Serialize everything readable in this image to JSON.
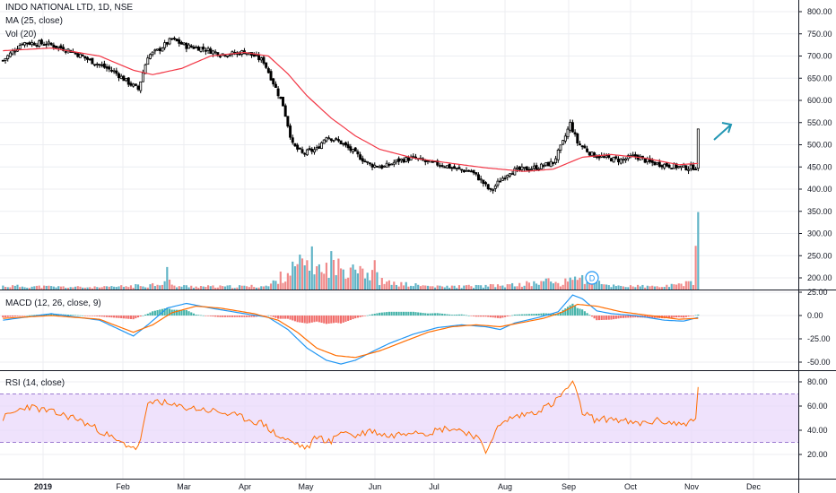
{
  "header": {
    "title": "INDO NATIONAL LTD, 1D, NSE",
    "ma_label": "MA (25, close)",
    "vol_label": "Vol (20)",
    "macd_label": "MACD (12, 26, close, 9)",
    "rsi_label": "RSI (14, close)"
  },
  "colors": {
    "up": "#000000",
    "down": "#000000",
    "ma": "#f23645",
    "vol_up": "#5fb3c6",
    "vol_down": "#f08a8a",
    "macd_line": "#2196f3",
    "signal_line": "#ff6d00",
    "hist_pos": "#26a69a",
    "hist_neg": "#ef5350",
    "rsi_line": "#ff6d00",
    "rsi_band": "#e9d8fb",
    "arrow": "#2196b3"
  },
  "marker": {
    "label": "D"
  },
  "chart_data": [
    {
      "type": "candlestick",
      "title": "INDO NATIONAL LTD, 1D, NSE",
      "y_ticks": [
        "800.00",
        "750.00",
        "700.00",
        "650.00",
        "600.00",
        "550.00",
        "500.00",
        "450.00",
        "400.00",
        "350.00",
        "300.00",
        "250.00",
        "200.00"
      ],
      "x_labels": [
        "2019",
        "Feb",
        "Mar",
        "Apr",
        "May",
        "Jun",
        "Jul",
        "Aug",
        "Sep",
        "Oct",
        "Nov",
        "Dec"
      ],
      "price_keypoints": [
        [
          0,
          690
        ],
        [
          8,
          730
        ],
        [
          18,
          728
        ],
        [
          28,
          712
        ],
        [
          36,
          690
        ],
        [
          46,
          665
        ],
        [
          52,
          640
        ],
        [
          56,
          625
        ],
        [
          60,
          700
        ],
        [
          64,
          712
        ],
        [
          70,
          738
        ],
        [
          76,
          722
        ],
        [
          82,
          718
        ],
        [
          90,
          705
        ],
        [
          96,
          705
        ],
        [
          100,
          710
        ],
        [
          104,
          700
        ],
        [
          108,
          688
        ],
        [
          112,
          640
        ],
        [
          116,
          590
        ],
        [
          120,
          500
        ],
        [
          124,
          480
        ],
        [
          130,
          490
        ],
        [
          134,
          520
        ],
        [
          140,
          505
        ],
        [
          146,
          480
        ],
        [
          152,
          455
        ],
        [
          158,
          450
        ],
        [
          164,
          465
        ],
        [
          170,
          470
        ],
        [
          176,
          460
        ],
        [
          182,
          455
        ],
        [
          188,
          445
        ],
        [
          194,
          440
        ],
        [
          198,
          420
        ],
        [
          202,
          395
        ],
        [
          206,
          420
        ],
        [
          210,
          440
        ],
        [
          216,
          445
        ],
        [
          222,
          450
        ],
        [
          228,
          460
        ],
        [
          232,
          505
        ],
        [
          235,
          548
        ],
        [
          238,
          505
        ],
        [
          244,
          478
        ],
        [
          250,
          470
        ],
        [
          256,
          465
        ],
        [
          262,
          475
        ],
        [
          268,
          460
        ],
        [
          274,
          455
        ],
        [
          280,
          450
        ],
        [
          284,
          448
        ],
        [
          287,
          450
        ],
        [
          288,
          530
        ]
      ],
      "ma_keypoints": [
        [
          0,
          712
        ],
        [
          20,
          718
        ],
        [
          40,
          700
        ],
        [
          54,
          668
        ],
        [
          62,
          658
        ],
        [
          74,
          672
        ],
        [
          86,
          700
        ],
        [
          100,
          708
        ],
        [
          110,
          700
        ],
        [
          118,
          660
        ],
        [
          126,
          610
        ],
        [
          136,
          560
        ],
        [
          146,
          520
        ],
        [
          156,
          490
        ],
        [
          170,
          470
        ],
        [
          186,
          458
        ],
        [
          200,
          448
        ],
        [
          216,
          440
        ],
        [
          228,
          445
        ],
        [
          240,
          472
        ],
        [
          252,
          478
        ],
        [
          266,
          470
        ],
        [
          280,
          455
        ],
        [
          288,
          458
        ]
      ],
      "volume_keypoints": [
        [
          0,
          10
        ],
        [
          20,
          8
        ],
        [
          40,
          6
        ],
        [
          60,
          12
        ],
        [
          67,
          22
        ],
        [
          68,
          55
        ],
        [
          70,
          10
        ],
        [
          90,
          8
        ],
        [
          110,
          10
        ],
        [
          118,
          50
        ],
        [
          126,
          80
        ],
        [
          130,
          85
        ],
        [
          132,
          40
        ],
        [
          136,
          82
        ],
        [
          140,
          55
        ],
        [
          146,
          85
        ],
        [
          152,
          40
        ],
        [
          154,
          60
        ],
        [
          156,
          25
        ],
        [
          160,
          18
        ],
        [
          180,
          8
        ],
        [
          200,
          10
        ],
        [
          210,
          12
        ],
        [
          220,
          18
        ],
        [
          226,
          25
        ],
        [
          232,
          15
        ],
        [
          236,
          40
        ],
        [
          240,
          30
        ],
        [
          250,
          12
        ],
        [
          270,
          8
        ],
        [
          280,
          12
        ],
        [
          284,
          25
        ],
        [
          286,
          18
        ],
        [
          288,
          180
        ]
      ]
    },
    {
      "type": "line",
      "title": "MACD (12, 26, close, 9)",
      "y_ticks": [
        "25.00",
        "0.00",
        "-25.00",
        "-50.00"
      ],
      "macd_keypoints": [
        [
          0,
          -5
        ],
        [
          20,
          2
        ],
        [
          40,
          -5
        ],
        [
          54,
          -22
        ],
        [
          60,
          -10
        ],
        [
          68,
          8
        ],
        [
          76,
          13
        ],
        [
          86,
          8
        ],
        [
          100,
          2
        ],
        [
          110,
          -2
        ],
        [
          118,
          -15
        ],
        [
          126,
          -35
        ],
        [
          134,
          -48
        ],
        [
          140,
          -52
        ],
        [
          146,
          -48
        ],
        [
          152,
          -40
        ],
        [
          160,
          -30
        ],
        [
          170,
          -20
        ],
        [
          180,
          -13
        ],
        [
          190,
          -10
        ],
        [
          200,
          -12
        ],
        [
          206,
          -15
        ],
        [
          212,
          -8
        ],
        [
          222,
          -2
        ],
        [
          230,
          4
        ],
        [
          236,
          22
        ],
        [
          240,
          18
        ],
        [
          246,
          5
        ],
        [
          252,
          2
        ],
        [
          262,
          0
        ],
        [
          274,
          -5
        ],
        [
          282,
          -6
        ],
        [
          288,
          -2
        ]
      ],
      "signal_keypoints": [
        [
          0,
          -3
        ],
        [
          20,
          0
        ],
        [
          40,
          -4
        ],
        [
          54,
          -18
        ],
        [
          62,
          -10
        ],
        [
          70,
          3
        ],
        [
          80,
          10
        ],
        [
          90,
          8
        ],
        [
          104,
          2
        ],
        [
          114,
          -5
        ],
        [
          122,
          -18
        ],
        [
          130,
          -35
        ],
        [
          138,
          -43
        ],
        [
          146,
          -45
        ],
        [
          156,
          -38
        ],
        [
          166,
          -28
        ],
        [
          176,
          -18
        ],
        [
          186,
          -12
        ],
        [
          196,
          -10
        ],
        [
          206,
          -12
        ],
        [
          214,
          -8
        ],
        [
          224,
          -3
        ],
        [
          232,
          4
        ],
        [
          238,
          12
        ],
        [
          246,
          10
        ],
        [
          256,
          4
        ],
        [
          268,
          0
        ],
        [
          280,
          -4
        ],
        [
          288,
          -3
        ]
      ]
    },
    {
      "type": "line",
      "title": "RSI (14, close)",
      "y_ticks": [
        "80.00",
        "60.00",
        "40.00",
        "20.00"
      ],
      "band": [
        30,
        70
      ],
      "rsi_keypoints": [
        [
          0,
          50
        ],
        [
          10,
          60
        ],
        [
          20,
          55
        ],
        [
          30,
          50
        ],
        [
          40,
          40
        ],
        [
          48,
          30
        ],
        [
          56,
          25
        ],
        [
          60,
          60
        ],
        [
          64,
          65
        ],
        [
          70,
          60
        ],
        [
          80,
          58
        ],
        [
          90,
          55
        ],
        [
          100,
          50
        ],
        [
          108,
          45
        ],
        [
          114,
          35
        ],
        [
          120,
          30
        ],
        [
          126,
          25
        ],
        [
          130,
          35
        ],
        [
          136,
          30
        ],
        [
          140,
          40
        ],
        [
          146,
          35
        ],
        [
          152,
          40
        ],
        [
          160,
          35
        ],
        [
          170,
          40
        ],
        [
          176,
          38
        ],
        [
          184,
          42
        ],
        [
          190,
          40
        ],
        [
          196,
          35
        ],
        [
          200,
          22
        ],
        [
          204,
          40
        ],
        [
          210,
          50
        ],
        [
          220,
          55
        ],
        [
          228,
          62
        ],
        [
          234,
          75
        ],
        [
          236,
          80
        ],
        [
          240,
          55
        ],
        [
          246,
          48
        ],
        [
          252,
          50
        ],
        [
          262,
          45
        ],
        [
          272,
          48
        ],
        [
          280,
          45
        ],
        [
          287,
          48
        ],
        [
          288,
          75
        ]
      ]
    }
  ]
}
